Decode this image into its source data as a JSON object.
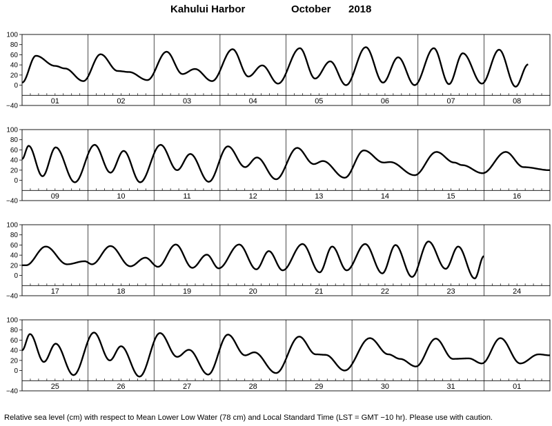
{
  "header": {
    "station": "Kahului Harbor",
    "month": "October",
    "year": "2018"
  },
  "footnote": "Relative sea level (cm) with respect to Mean Lower Low Water (78 cm) and Local Standard Time (LST = GMT −10 hr). Please use with caution.",
  "chart_data": {
    "type": "line",
    "title": "Kahului Harbor October 2018",
    "ylabel": "Relative sea level (cm)",
    "ylim": [
      -40,
      100
    ],
    "yticks": [
      "100",
      "80",
      "60",
      "40",
      "20",
      "0",
      "−40"
    ],
    "grid": false,
    "panels": [
      {
        "days": [
          "01",
          "02",
          "03",
          "04",
          "05",
          "06",
          "07",
          "08"
        ],
        "extrema": [
          [
            0.0,
            5
          ],
          [
            0.21,
            58
          ],
          [
            0.5,
            38
          ],
          [
            0.65,
            33
          ],
          [
            0.93,
            8
          ],
          [
            1.19,
            61
          ],
          [
            1.45,
            28
          ],
          [
            1.62,
            26
          ],
          [
            1.9,
            10
          ],
          [
            2.19,
            66
          ],
          [
            2.43,
            22
          ],
          [
            2.62,
            32
          ],
          [
            2.88,
            8
          ],
          [
            3.19,
            71
          ],
          [
            3.43,
            17
          ],
          [
            3.64,
            39
          ],
          [
            3.88,
            3
          ],
          [
            4.21,
            73
          ],
          [
            4.44,
            13
          ],
          [
            4.67,
            47
          ],
          [
            4.91,
            0
          ],
          [
            5.21,
            75
          ],
          [
            5.47,
            5
          ],
          [
            5.7,
            55
          ],
          [
            5.95,
            0
          ],
          [
            6.24,
            73
          ],
          [
            6.47,
            2
          ],
          [
            6.68,
            63
          ],
          [
            6.97,
            3
          ],
          [
            7.23,
            70
          ],
          [
            7.48,
            -3
          ],
          [
            7.67,
            41
          ]
        ]
      },
      {
        "days": [
          "09",
          "10",
          "11",
          "12",
          "13",
          "14",
          "15",
          "16"
        ],
        "extrema": [
          [
            0.0,
            42
          ],
          [
            0.1,
            68
          ],
          [
            0.31,
            8
          ],
          [
            0.51,
            65
          ],
          [
            0.8,
            -4
          ],
          [
            1.1,
            70
          ],
          [
            1.34,
            15
          ],
          [
            1.54,
            58
          ],
          [
            1.79,
            -4
          ],
          [
            2.1,
            70
          ],
          [
            2.35,
            20
          ],
          [
            2.55,
            52
          ],
          [
            2.83,
            -3
          ],
          [
            3.12,
            67
          ],
          [
            3.38,
            26
          ],
          [
            3.56,
            45
          ],
          [
            3.85,
            2
          ],
          [
            4.17,
            64
          ],
          [
            4.42,
            32
          ],
          [
            4.56,
            38
          ],
          [
            4.89,
            5
          ],
          [
            5.18,
            59
          ],
          [
            5.48,
            35
          ],
          [
            5.58,
            36
          ],
          [
            5.95,
            10
          ],
          [
            6.28,
            56
          ],
          [
            6.55,
            35
          ],
          [
            6.67,
            30
          ],
          [
            6.98,
            14
          ],
          [
            7.33,
            56
          ],
          [
            7.6,
            26
          ],
          [
            8.0,
            20
          ]
        ]
      },
      {
        "days": [
          "17",
          "18",
          "19",
          "20",
          "21",
          "22",
          "23",
          "24"
        ],
        "extrema": [
          [
            0.0,
            20
          ],
          [
            0.06,
            20
          ],
          [
            0.36,
            57
          ],
          [
            0.68,
            22
          ],
          [
            0.95,
            28
          ],
          [
            1.06,
            22
          ],
          [
            1.34,
            58
          ],
          [
            1.64,
            18
          ],
          [
            1.87,
            35
          ],
          [
            2.06,
            17
          ],
          [
            2.33,
            61
          ],
          [
            2.58,
            15
          ],
          [
            2.8,
            41
          ],
          [
            2.98,
            14
          ],
          [
            3.29,
            61
          ],
          [
            3.55,
            12
          ],
          [
            3.74,
            48
          ],
          [
            3.95,
            10
          ],
          [
            4.25,
            62
          ],
          [
            4.51,
            6
          ],
          [
            4.7,
            57
          ],
          [
            4.92,
            10
          ],
          [
            5.2,
            62
          ],
          [
            5.46,
            4
          ],
          [
            5.66,
            60
          ],
          [
            5.91,
            -3
          ],
          [
            6.16,
            67
          ],
          [
            6.42,
            13
          ],
          [
            6.61,
            57
          ],
          [
            6.86,
            -6
          ],
          [
            7.0,
            38
          ]
        ]
      },
      {
        "days": [
          "25",
          "26",
          "27",
          "28",
          "29",
          "30",
          "31",
          "01"
        ],
        "extrema": [
          [
            0.0,
            40
          ],
          [
            0.12,
            72
          ],
          [
            0.33,
            17
          ],
          [
            0.51,
            53
          ],
          [
            0.78,
            -9
          ],
          [
            1.09,
            75
          ],
          [
            1.33,
            20
          ],
          [
            1.5,
            48
          ],
          [
            1.78,
            -12
          ],
          [
            2.09,
            74
          ],
          [
            2.35,
            27
          ],
          [
            2.53,
            41
          ],
          [
            2.82,
            -8
          ],
          [
            3.12,
            71
          ],
          [
            3.38,
            30
          ],
          [
            3.52,
            36
          ],
          [
            3.85,
            -5
          ],
          [
            4.2,
            67
          ],
          [
            4.45,
            32
          ],
          [
            4.6,
            31
          ],
          [
            4.89,
            0
          ],
          [
            5.27,
            64
          ],
          [
            5.55,
            32
          ],
          [
            5.73,
            23
          ],
          [
            5.97,
            8
          ],
          [
            6.27,
            63
          ],
          [
            6.53,
            23
          ],
          [
            6.77,
            24
          ],
          [
            6.97,
            14
          ],
          [
            7.25,
            64
          ],
          [
            7.55,
            14
          ],
          [
            7.83,
            32
          ],
          [
            8.0,
            30
          ]
        ]
      }
    ]
  }
}
